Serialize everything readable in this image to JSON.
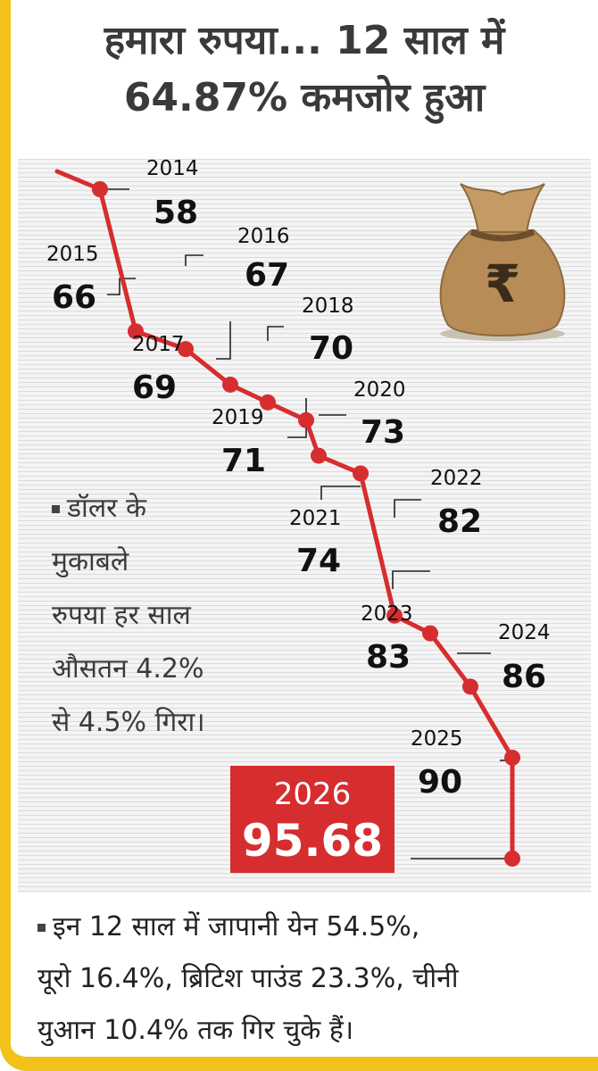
{
  "headline": {
    "line1": "हमारा रुपया... 12 साल में",
    "line2": "64.87% कमजोर हुआ"
  },
  "colors": {
    "line": "#d62d2f",
    "highlight_bg": "#d62d2f",
    "accent_border": "#f2c21a"
  },
  "bag_symbol": "₹",
  "chart_data": {
    "type": "line",
    "title": "हमारा रुपया... 12 साल में 64.87% कमजोर हुआ",
    "x": [
      "2014",
      "2015",
      "2016",
      "2017",
      "2018",
      "2019",
      "2020",
      "2021",
      "2022",
      "2023",
      "2024",
      "2025",
      "2026"
    ],
    "series": [
      {
        "values": [
          58,
          66,
          67,
          69,
          70,
          71,
          73,
          74,
          82,
          83,
          86,
          90,
          95.68
        ]
      }
    ],
    "point_labels": [
      "58",
      "66",
      "67",
      "69",
      "70",
      "71",
      "73",
      "74",
      "82",
      "83",
      "86",
      "90",
      "95.68"
    ],
    "axes": "none",
    "grid": false
  },
  "notes": {
    "rupee_note": [
      "डॉलर के",
      "मुकाबले",
      "रुपया हर साल",
      "औसतन 4.2%",
      "से 4.5% गिरा।"
    ]
  },
  "highlight": {
    "year": "2026",
    "value": "95.68"
  },
  "footer": {
    "lines": [
      "इन 12 साल में जापानी येन 54.5%,",
      "यूरो 16.4%, ब्रिटिश पाउंड 23.3%, चीनी",
      "युआन 10.4% तक गिर चुके हैं।"
    ]
  }
}
